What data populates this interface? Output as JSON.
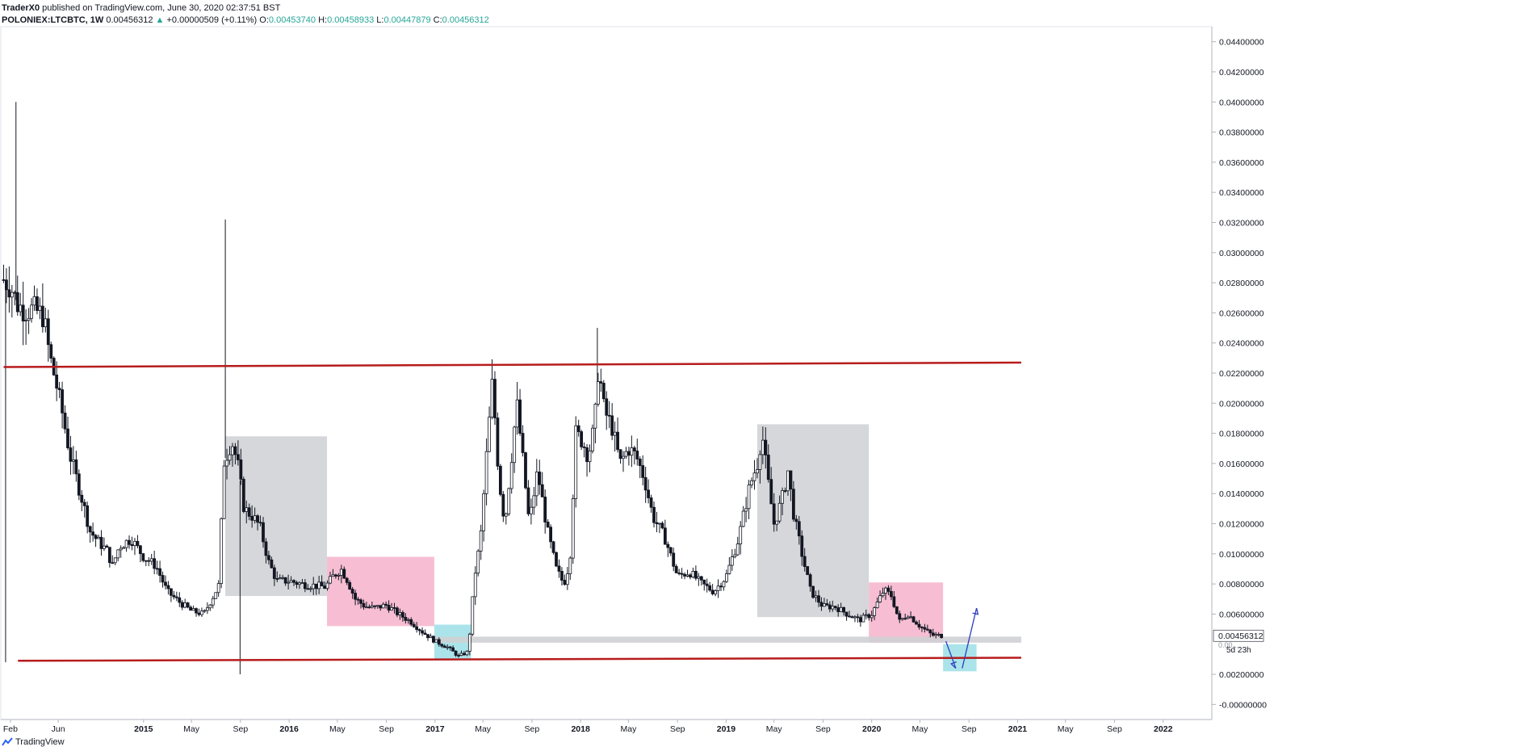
{
  "header": {
    "author": "TraderX0",
    "published_text": "published on TradingView.com, June 30, 2020 02:37:51 BST",
    "symbol": "POLONIEX:LTCBTC, 1W",
    "last": "0.00456312",
    "change_arrow": "▲",
    "change": "+0.00000509 (+0.11%)",
    "o_label": "O:",
    "o": "0.00453740",
    "h_label": "H:",
    "h": "0.00458933",
    "l_label": "L:",
    "l": "0.00447879",
    "c_label": "C:",
    "c": "0.00456312"
  },
  "footer": {
    "brand": "TradingView"
  },
  "colors": {
    "bull": "#26a69a",
    "candle": "#131722",
    "trendline": "#b71c1c",
    "gray_box": "#cfd0d4",
    "pink_box": "#f6b3cb",
    "cyan_box": "#9bdfe6",
    "arrow": "#2e3dbf",
    "last_price_bg": "#ffffff"
  },
  "chart_data": {
    "type": "candlestick",
    "timeframe": "1W",
    "y_axis": {
      "min": -0.001,
      "max": 0.045,
      "tick_labels": [
        "0.04400000",
        "0.04200000",
        "0.04000000",
        "0.03800000",
        "0.03600000",
        "0.03400000",
        "0.03200000",
        "0.03000000",
        "0.02800000",
        "0.02600000",
        "0.02400000",
        "0.02200000",
        "0.02000000",
        "0.01800000",
        "0.01600000",
        "0.01400000",
        "0.01200000",
        "0.01000000",
        "0.00800000",
        "0.00600000",
        "0.00200000",
        "-0.00000000"
      ],
      "tick_values": [
        0.044,
        0.042,
        0.04,
        0.038,
        0.036,
        0.034,
        0.032,
        0.03,
        0.028,
        0.026,
        0.024,
        0.022,
        0.02,
        0.018,
        0.016,
        0.014,
        0.012,
        0.01,
        0.008,
        0.006,
        0.002,
        0.0
      ],
      "last_price_label": "0.00456312",
      "countdown_label": "5d 23h",
      "hidden_label": "0.00..."
    },
    "x_axis": {
      "tick_labels": [
        "Feb",
        "Jun",
        "2015",
        "May",
        "Sep",
        "2016",
        "May",
        "Sep",
        "2017",
        "May",
        "Sep",
        "2018",
        "May",
        "Sep",
        "2019",
        "May",
        "Sep",
        "2020",
        "May",
        "Sep",
        "2021",
        "May",
        "Sep",
        "2022"
      ],
      "tick_dates": [
        "2014-02-01",
        "2014-06-01",
        "2015-01-01",
        "2015-05-01",
        "2015-09-01",
        "2016-01-01",
        "2016-05-01",
        "2016-09-01",
        "2017-01-01",
        "2017-05-01",
        "2017-09-01",
        "2018-01-01",
        "2018-05-01",
        "2018-09-01",
        "2019-01-01",
        "2019-05-01",
        "2019-09-01",
        "2020-01-01",
        "2020-05-01",
        "2020-09-01",
        "2021-01-01",
        "2021-05-01",
        "2021-09-01",
        "2022-01-01"
      ],
      "range": [
        "2014-01-10",
        "2022-05-01"
      ]
    },
    "price_path": [
      [
        "2014-01-15",
        0.0282
      ],
      [
        "2014-02-01",
        0.0278
      ],
      [
        "2014-02-20",
        0.0265
      ],
      [
        "2014-03-10",
        0.0262
      ],
      [
        "2014-04-01",
        0.0262
      ],
      [
        "2014-04-25",
        0.0258
      ],
      [
        "2014-05-10",
        0.0232
      ],
      [
        "2014-05-25",
        0.0215
      ],
      [
        "2014-06-10",
        0.0195
      ],
      [
        "2014-07-01",
        0.0165
      ],
      [
        "2014-08-01",
        0.0135
      ],
      [
        "2014-08-20",
        0.0115
      ],
      [
        "2014-09-10",
        0.0108
      ],
      [
        "2014-10-01",
        0.0102
      ],
      [
        "2014-10-15",
        0.0092
      ],
      [
        "2014-11-01",
        0.0105
      ],
      [
        "2014-12-01",
        0.011
      ],
      [
        "2015-01-01",
        0.0098
      ],
      [
        "2015-02-01",
        0.0092
      ],
      [
        "2015-03-01",
        0.0075
      ],
      [
        "2015-04-01",
        0.0068
      ],
      [
        "2015-05-01",
        0.0062
      ],
      [
        "2015-06-01",
        0.006
      ],
      [
        "2015-06-25",
        0.0072
      ],
      [
        "2015-07-10",
        0.008
      ],
      [
        "2015-07-20",
        0.016
      ],
      [
        "2015-08-10",
        0.0175
      ],
      [
        "2015-08-25",
        0.016
      ],
      [
        "2015-09-10",
        0.013
      ],
      [
        "2015-10-01",
        0.0125
      ],
      [
        "2015-10-20",
        0.0118
      ],
      [
        "2015-11-10",
        0.0095
      ],
      [
        "2015-12-01",
        0.0082
      ],
      [
        "2016-01-01",
        0.0082
      ],
      [
        "2016-02-01",
        0.008
      ],
      [
        "2016-03-01",
        0.0079
      ],
      [
        "2016-04-01",
        0.0078
      ],
      [
        "2016-04-20",
        0.0085
      ],
      [
        "2016-05-10",
        0.009
      ],
      [
        "2016-05-25",
        0.0083
      ],
      [
        "2016-06-15",
        0.007
      ],
      [
        "2016-07-10",
        0.0065
      ],
      [
        "2016-08-01",
        0.0064
      ],
      [
        "2016-09-01",
        0.0066
      ],
      [
        "2016-10-01",
        0.006
      ],
      [
        "2016-11-01",
        0.0055
      ],
      [
        "2016-12-01",
        0.0048
      ],
      [
        "2017-01-01",
        0.0042
      ],
      [
        "2017-02-01",
        0.0038
      ],
      [
        "2017-03-01",
        0.0032
      ],
      [
        "2017-03-25",
        0.0035
      ],
      [
        "2017-04-10",
        0.0085
      ],
      [
        "2017-04-25",
        0.011
      ],
      [
        "2017-05-10",
        0.0165
      ],
      [
        "2017-05-25",
        0.0215
      ],
      [
        "2017-06-10",
        0.015
      ],
      [
        "2017-06-25",
        0.012
      ],
      [
        "2017-07-10",
        0.016
      ],
      [
        "2017-07-25",
        0.02
      ],
      [
        "2017-08-10",
        0.016
      ],
      [
        "2017-08-25",
        0.012
      ],
      [
        "2017-09-15",
        0.0155
      ],
      [
        "2017-10-10",
        0.0115
      ],
      [
        "2017-11-01",
        0.009
      ],
      [
        "2017-11-20",
        0.008
      ],
      [
        "2017-12-05",
        0.0095
      ],
      [
        "2017-12-20",
        0.018
      ],
      [
        "2018-01-05",
        0.0175
      ],
      [
        "2018-01-20",
        0.0165
      ],
      [
        "2018-02-05",
        0.0185
      ],
      [
        "2018-02-15",
        0.0225
      ],
      [
        "2018-03-01",
        0.0195
      ],
      [
        "2018-03-20",
        0.0185
      ],
      [
        "2018-04-10",
        0.016
      ],
      [
        "2018-05-01",
        0.017
      ],
      [
        "2018-05-20",
        0.0165
      ],
      [
        "2018-06-10",
        0.015
      ],
      [
        "2018-07-01",
        0.0125
      ],
      [
        "2018-08-01",
        0.011
      ],
      [
        "2018-09-01",
        0.0085
      ],
      [
        "2018-10-01",
        0.0088
      ],
      [
        "2018-11-01",
        0.008
      ],
      [
        "2018-12-01",
        0.0075
      ],
      [
        "2019-01-01",
        0.0085
      ],
      [
        "2019-02-01",
        0.011
      ],
      [
        "2019-03-01",
        0.0145
      ],
      [
        "2019-03-20",
        0.016
      ],
      [
        "2019-04-01",
        0.018
      ],
      [
        "2019-04-15",
        0.015
      ],
      [
        "2019-05-01",
        0.012
      ],
      [
        "2019-05-20",
        0.0135
      ],
      [
        "2019-06-05",
        0.0155
      ],
      [
        "2019-06-20",
        0.0125
      ],
      [
        "2019-07-10",
        0.01
      ],
      [
        "2019-08-01",
        0.0075
      ],
      [
        "2019-09-01",
        0.0065
      ],
      [
        "2019-10-01",
        0.0065
      ],
      [
        "2019-11-01",
        0.006
      ],
      [
        "2019-12-01",
        0.0056
      ],
      [
        "2020-01-01",
        0.006
      ],
      [
        "2020-02-01",
        0.0076
      ],
      [
        "2020-02-20",
        0.0072
      ],
      [
        "2020-03-10",
        0.0055
      ],
      [
        "2020-04-01",
        0.006
      ],
      [
        "2020-05-01",
        0.0052
      ],
      [
        "2020-06-01",
        0.0046
      ],
      [
        "2020-06-29",
        0.00456
      ]
    ],
    "spikes": [
      {
        "date": "2014-01-20",
        "low": 0.0028
      },
      {
        "date": "2014-02-15",
        "high": 0.04
      },
      {
        "date": "2015-07-25",
        "high": 0.0322
      },
      {
        "date": "2015-08-31",
        "low": 0.002
      },
      {
        "date": "2018-02-12",
        "high": 0.025
      }
    ],
    "trendlines": [
      {
        "from": [
          "2014-01-15",
          0.0224
        ],
        "to": [
          "2021-01-10",
          0.0227
        ]
      },
      {
        "from": [
          "2014-02-20",
          0.0029
        ],
        "to": [
          "2021-01-10",
          0.0031
        ]
      }
    ],
    "zones": [
      {
        "kind": "gray",
        "from": "2015-07-25",
        "to": "2016-04-05",
        "top": 0.0178,
        "bottom": 0.0072
      },
      {
        "kind": "pink",
        "from": "2016-04-05",
        "to": "2016-12-30",
        "top": 0.0098,
        "bottom": 0.0052
      },
      {
        "kind": "cyan",
        "from": "2016-12-30",
        "to": "2017-04-01",
        "top": 0.0053,
        "bottom": 0.003
      },
      {
        "kind": "gray",
        "from": "2019-03-20",
        "to": "2019-12-25",
        "top": 0.0186,
        "bottom": 0.0058
      },
      {
        "kind": "pink",
        "from": "2019-12-25",
        "to": "2020-06-28",
        "top": 0.0081,
        "bottom": 0.0041
      },
      {
        "kind": "cyan",
        "from": "2020-06-28",
        "to": "2020-09-20",
        "top": 0.004,
        "bottom": 0.0022
      },
      {
        "kind": "support",
        "from": "2016-12-30",
        "to": "2021-01-10",
        "top": 0.0045,
        "bottom": 0.0041
      }
    ],
    "projection_arrows": [
      {
        "from": [
          "2020-07-05",
          0.0042
        ],
        "to": [
          "2020-07-30",
          0.0024
        ]
      },
      {
        "from": [
          "2020-08-15",
          0.0024
        ],
        "to": [
          "2020-09-20",
          0.0064
        ]
      }
    ]
  }
}
